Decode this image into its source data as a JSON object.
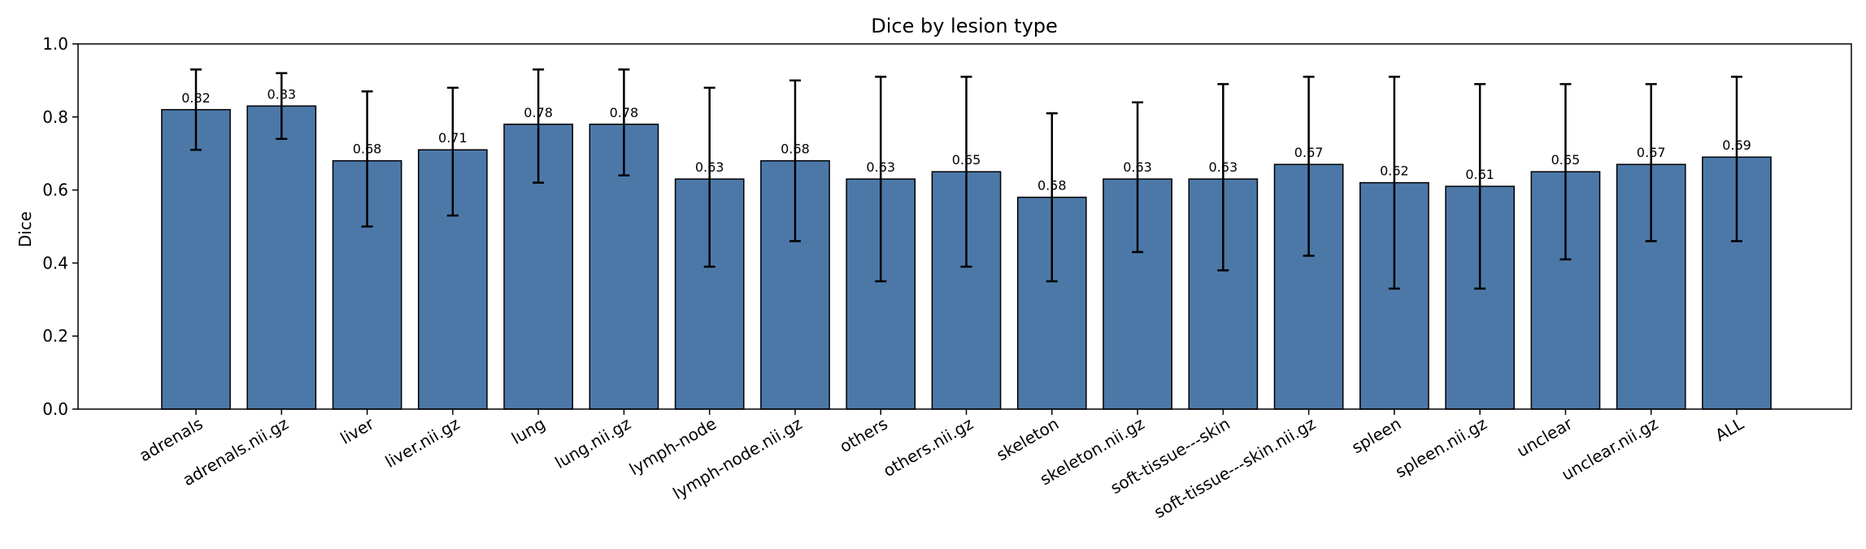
{
  "chart_data": {
    "type": "bar",
    "title": "Dice by lesion type",
    "xlabel": "",
    "ylabel": "Dice",
    "ylim": [
      0,
      1.0
    ],
    "yticks": [
      "0.0",
      "0.2",
      "0.4",
      "0.6",
      "0.8",
      "1.0"
    ],
    "bar_color": "#4c78a8",
    "categories": [
      "adrenals",
      "adrenals.nii.gz",
      "liver",
      "liver.nii.gz",
      "lung",
      "lung.nii.gz",
      "lymph-node",
      "lymph-node.nii.gz",
      "others",
      "others.nii.gz",
      "skeleton",
      "skeleton.nii.gz",
      "soft-tissue---skin",
      "soft-tissue---skin.nii.gz",
      "spleen",
      "spleen.nii.gz",
      "unclear",
      "unclear.nii.gz",
      "ALL"
    ],
    "values": [
      0.82,
      0.83,
      0.68,
      0.71,
      0.78,
      0.78,
      0.63,
      0.68,
      0.63,
      0.65,
      0.58,
      0.63,
      0.63,
      0.67,
      0.62,
      0.61,
      0.65,
      0.67,
      0.69
    ],
    "value_labels": [
      "0.82",
      "0.83",
      "0.68",
      "0.71",
      "0.78",
      "0.78",
      "0.63",
      "0.68",
      "0.63",
      "0.65",
      "0.58",
      "0.63",
      "0.63",
      "0.67",
      "0.62",
      "0.61",
      "0.65",
      "0.67",
      "0.69"
    ],
    "error_low": [
      0.71,
      0.74,
      0.5,
      0.53,
      0.62,
      0.64,
      0.39,
      0.46,
      0.35,
      0.39,
      0.35,
      0.43,
      0.38,
      0.42,
      0.33,
      0.33,
      0.41,
      0.46,
      0.46
    ],
    "error_high": [
      0.93,
      0.92,
      0.87,
      0.88,
      0.93,
      0.93,
      0.88,
      0.9,
      0.91,
      0.91,
      0.81,
      0.84,
      0.89,
      0.91,
      0.91,
      0.89,
      0.89,
      0.89,
      0.91
    ]
  }
}
